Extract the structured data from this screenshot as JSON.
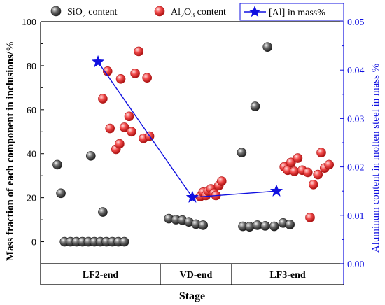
{
  "chart_data": {
    "type": "scatter",
    "xlabel": "Stage",
    "ylabel_left": "Mass fraction of each component in  inclusions/%",
    "ylabel_right": "Aluminum content in molten steel in mass %",
    "ylim_left": [
      -10,
      100
    ],
    "yticks_left": [
      "0",
      "20",
      "40",
      "60",
      "80",
      "100"
    ],
    "ylim_right": [
      0.0,
      0.05
    ],
    "yticks_right": [
      "0.00",
      "0.01",
      "0.02",
      "0.03",
      "0.04",
      "0.05"
    ],
    "categories": [
      "LF2-end",
      "VD-end",
      "LF3-end"
    ],
    "legend": {
      "sio2_main": "SiO",
      "sio2_sub": "2",
      "sio2_rest": " content",
      "al2o3_main": "Al",
      "al2o3_sub1": "2",
      "al2o3_mid": "O",
      "al2o3_sub2": "3",
      "al2o3_rest": " content",
      "al_label": "[Al] in mass%"
    },
    "series": [
      {
        "key": "sio2",
        "color": "#555555",
        "points": [
          {
            "stage": "LF2-end",
            "offset": 0.14,
            "y": 35
          },
          {
            "stage": "LF2-end",
            "offset": 0.17,
            "y": 22
          },
          {
            "stage": "LF2-end",
            "offset": 0.42,
            "y": 39
          },
          {
            "stage": "LF2-end",
            "offset": 0.52,
            "y": 13.5
          },
          {
            "stage": "LF2-end",
            "offset": 0.2,
            "y": 0
          },
          {
            "stage": "LF2-end",
            "offset": 0.25,
            "y": 0
          },
          {
            "stage": "LF2-end",
            "offset": 0.3,
            "y": 0
          },
          {
            "stage": "LF2-end",
            "offset": 0.35,
            "y": 0
          },
          {
            "stage": "LF2-end",
            "offset": 0.4,
            "y": 0
          },
          {
            "stage": "LF2-end",
            "offset": 0.45,
            "y": 0
          },
          {
            "stage": "LF2-end",
            "offset": 0.5,
            "y": 0
          },
          {
            "stage": "LF2-end",
            "offset": 0.55,
            "y": 0
          },
          {
            "stage": "LF2-end",
            "offset": 0.6,
            "y": 0
          },
          {
            "stage": "LF2-end",
            "offset": 0.65,
            "y": 0
          },
          {
            "stage": "LF2-end",
            "offset": 0.7,
            "y": 0
          },
          {
            "stage": "VD-end",
            "offset": 0.12,
            "y": 10.5
          },
          {
            "stage": "VD-end",
            "offset": 0.22,
            "y": 10
          },
          {
            "stage": "VD-end",
            "offset": 0.31,
            "y": 9.8
          },
          {
            "stage": "VD-end",
            "offset": 0.4,
            "y": 9
          },
          {
            "stage": "VD-end",
            "offset": 0.5,
            "y": 8
          },
          {
            "stage": "VD-end",
            "offset": 0.6,
            "y": 7.5
          },
          {
            "stage": "LF3-end",
            "offset": 0.09,
            "y": 40.5
          },
          {
            "stage": "LF3-end",
            "offset": 0.21,
            "y": 61.5
          },
          {
            "stage": "LF3-end",
            "offset": 0.32,
            "y": 88.5
          },
          {
            "stage": "LF3-end",
            "offset": 0.1,
            "y": 7
          },
          {
            "stage": "LF3-end",
            "offset": 0.16,
            "y": 6.8
          },
          {
            "stage": "LF3-end",
            "offset": 0.23,
            "y": 7.5
          },
          {
            "stage": "LF3-end",
            "offset": 0.3,
            "y": 7.2
          },
          {
            "stage": "LF3-end",
            "offset": 0.38,
            "y": 7
          },
          {
            "stage": "LF3-end",
            "offset": 0.46,
            "y": 8.5
          },
          {
            "stage": "LF3-end",
            "offset": 0.52,
            "y": 7.8
          }
        ]
      },
      {
        "key": "al2o3",
        "color": "#e83030",
        "points": [
          {
            "stage": "LF2-end",
            "offset": 0.56,
            "y": 77.5
          },
          {
            "stage": "LF2-end",
            "offset": 0.52,
            "y": 65
          },
          {
            "stage": "LF2-end",
            "offset": 0.58,
            "y": 51.5
          },
          {
            "stage": "LF2-end",
            "offset": 0.63,
            "y": 42
          },
          {
            "stage": "LF2-end",
            "offset": 0.66,
            "y": 44.5
          },
          {
            "stage": "LF2-end",
            "offset": 0.67,
            "y": 74
          },
          {
            "stage": "LF2-end",
            "offset": 0.7,
            "y": 52
          },
          {
            "stage": "LF2-end",
            "offset": 0.74,
            "y": 57
          },
          {
            "stage": "LF2-end",
            "offset": 0.76,
            "y": 50
          },
          {
            "stage": "LF2-end",
            "offset": 0.79,
            "y": 76.5
          },
          {
            "stage": "LF2-end",
            "offset": 0.82,
            "y": 86.5
          },
          {
            "stage": "LF2-end",
            "offset": 0.86,
            "y": 47
          },
          {
            "stage": "LF2-end",
            "offset": 0.89,
            "y": 74.5
          },
          {
            "stage": "LF2-end",
            "offset": 0.91,
            "y": 48
          },
          {
            "stage": "VD-end",
            "offset": 0.56,
            "y": 20.5
          },
          {
            "stage": "VD-end",
            "offset": 0.6,
            "y": 22.5
          },
          {
            "stage": "VD-end",
            "offset": 0.64,
            "y": 21
          },
          {
            "stage": "VD-end",
            "offset": 0.67,
            "y": 23
          },
          {
            "stage": "VD-end",
            "offset": 0.71,
            "y": 24
          },
          {
            "stage": "VD-end",
            "offset": 0.75,
            "y": 22
          },
          {
            "stage": "VD-end",
            "offset": 0.78,
            "y": 21
          },
          {
            "stage": "VD-end",
            "offset": 0.82,
            "y": 25.5
          },
          {
            "stage": "VD-end",
            "offset": 0.86,
            "y": 27.5
          },
          {
            "stage": "LF3-end",
            "offset": 0.47,
            "y": 34
          },
          {
            "stage": "LF3-end",
            "offset": 0.5,
            "y": 32.5
          },
          {
            "stage": "LF3-end",
            "offset": 0.53,
            "y": 36
          },
          {
            "stage": "LF3-end",
            "offset": 0.56,
            "y": 32
          },
          {
            "stage": "LF3-end",
            "offset": 0.59,
            "y": 38
          },
          {
            "stage": "LF3-end",
            "offset": 0.63,
            "y": 32.5
          },
          {
            "stage": "LF3-end",
            "offset": 0.68,
            "y": 31.5
          },
          {
            "stage": "LF3-end",
            "offset": 0.7,
            "y": 11
          },
          {
            "stage": "LF3-end",
            "offset": 0.73,
            "y": 26
          },
          {
            "stage": "LF3-end",
            "offset": 0.77,
            "y": 30.5
          },
          {
            "stage": "LF3-end",
            "offset": 0.8,
            "y": 40.5
          },
          {
            "stage": "LF3-end",
            "offset": 0.83,
            "y": 33.5
          },
          {
            "stage": "LF3-end",
            "offset": 0.87,
            "y": 35
          }
        ]
      }
    ],
    "al_series": {
      "color": "#1010e0",
      "points": [
        {
          "stage": "LF2-end",
          "offset": 0.48,
          "y": 0.0417
        },
        {
          "stage": "VD-end",
          "offset": 0.45,
          "y": 0.0137
        },
        {
          "stage": "LF3-end",
          "offset": 0.4,
          "y": 0.015
        }
      ]
    }
  }
}
